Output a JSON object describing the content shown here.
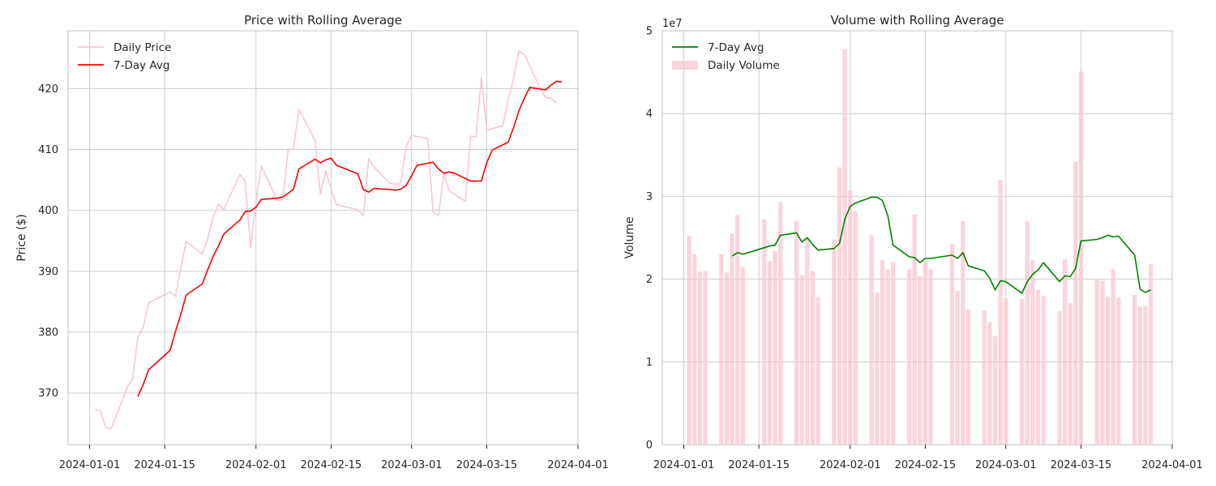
{
  "chart_data": [
    {
      "type": "line",
      "title": "Price with Rolling Average",
      "xlabel": "",
      "ylabel": "Price ($)",
      "x_tick_labels": [
        "2024-01-01",
        "2024-01-15",
        "2024-02-01",
        "2024-02-15",
        "2024-03-01",
        "2024-03-15",
        "2024-04-01"
      ],
      "y_tick_labels": [
        "370",
        "380",
        "390",
        "400",
        "410",
        "420"
      ],
      "xlim": [
        "2023-12-28",
        "2024-04-01"
      ],
      "ylim": [
        361.5,
        429.5
      ],
      "grid": true,
      "legend_position": "top-left",
      "series": [
        {
          "name": "Daily Price",
          "color": "#f9c6d0",
          "points": [
            [
              "2024-01-02",
              367.3
            ],
            [
              "2024-01-03",
              367.1
            ],
            [
              "2024-01-04",
              364.3
            ],
            [
              "2024-01-05",
              364.1
            ],
            [
              "2024-01-08",
              370.9
            ],
            [
              "2024-01-09",
              372.3
            ],
            [
              "2024-01-10",
              379.1
            ],
            [
              "2024-01-11",
              380.8
            ],
            [
              "2024-01-12",
              384.8
            ],
            [
              "2024-01-16",
              386.6
            ],
            [
              "2024-01-17",
              385.9
            ],
            [
              "2024-01-18",
              390.4
            ],
            [
              "2024-01-19",
              394.9
            ],
            [
              "2024-01-22",
              392.8
            ],
            [
              "2024-01-23",
              395.3
            ],
            [
              "2024-01-24",
              398.8
            ],
            [
              "2024-01-25",
              401.0
            ],
            [
              "2024-01-26",
              400.1
            ],
            [
              "2024-01-29",
              405.9
            ],
            [
              "2024-01-30",
              404.8
            ],
            [
              "2024-01-31",
              393.9
            ],
            [
              "2024-02-01",
              401.4
            ],
            [
              "2024-02-02",
              407.3
            ],
            [
              "2024-02-05",
              401.6
            ],
            [
              "2024-02-06",
              401.8
            ],
            [
              "2024-02-07",
              410.1
            ],
            [
              "2024-02-08",
              410.1
            ],
            [
              "2024-02-09",
              416.6
            ],
            [
              "2024-02-12",
              411.5
            ],
            [
              "2024-02-13",
              402.6
            ],
            [
              "2024-02-14",
              406.5
            ],
            [
              "2024-02-15",
              403.5
            ],
            [
              "2024-02-16",
              400.9
            ],
            [
              "2024-02-20",
              400.1
            ],
            [
              "2024-02-21",
              399.1
            ],
            [
              "2024-02-22",
              408.5
            ],
            [
              "2024-02-23",
              407.1
            ],
            [
              "2024-02-26",
              404.4
            ],
            [
              "2024-02-27",
              404.3
            ],
            [
              "2024-02-28",
              404.6
            ],
            [
              "2024-02-29",
              410.5
            ],
            [
              "2024-03-01",
              412.3
            ],
            [
              "2024-03-04",
              411.8
            ],
            [
              "2024-03-05",
              399.7
            ],
            [
              "2024-03-06",
              399.2
            ],
            [
              "2024-03-07",
              406.0
            ],
            [
              "2024-03-08",
              403.2
            ],
            [
              "2024-03-11",
              401.5
            ],
            [
              "2024-03-12",
              412.2
            ],
            [
              "2024-03-13",
              412.1
            ],
            [
              "2024-03-14",
              421.9
            ],
            [
              "2024-03-15",
              413.2
            ],
            [
              "2024-03-18",
              413.9
            ],
            [
              "2024-03-19",
              418.2
            ],
            [
              "2024-03-20",
              421.7
            ],
            [
              "2024-03-21",
              426.2
            ],
            [
              "2024-03-22",
              425.6
            ],
            [
              "2024-03-25",
              419.9
            ],
            [
              "2024-03-26",
              418.5
            ],
            [
              "2024-03-27",
              418.4
            ],
            [
              "2024-03-28",
              417.6
            ]
          ]
        },
        {
          "name": "7-Day Avg",
          "color": "#ff0000",
          "points": [
            [
              "2024-01-10",
              369.4
            ],
            [
              "2024-01-11",
              371.4
            ],
            [
              "2024-01-12",
              373.8
            ],
            [
              "2024-01-16",
              377.0
            ],
            [
              "2024-01-17",
              380.1
            ],
            [
              "2024-01-18",
              382.9
            ],
            [
              "2024-01-19",
              386.1
            ],
            [
              "2024-01-22",
              387.9
            ],
            [
              "2024-01-23",
              390.2
            ],
            [
              "2024-01-24",
              392.4
            ],
            [
              "2024-01-25",
              394.1
            ],
            [
              "2024-01-26",
              396.1
            ],
            [
              "2024-01-29",
              398.4
            ],
            [
              "2024-01-30",
              399.8
            ],
            [
              "2024-01-31",
              399.9
            ],
            [
              "2024-02-01",
              400.5
            ],
            [
              "2024-02-02",
              401.8
            ],
            [
              "2024-02-05",
              402.0
            ],
            [
              "2024-02-06",
              402.2
            ],
            [
              "2024-02-07",
              402.8
            ],
            [
              "2024-02-08",
              403.5
            ],
            [
              "2024-02-09",
              406.8
            ],
            [
              "2024-02-12",
              408.4
            ],
            [
              "2024-02-13",
              407.8
            ],
            [
              "2024-02-14",
              408.3
            ],
            [
              "2024-02-15",
              408.6
            ],
            [
              "2024-02-16",
              407.4
            ],
            [
              "2024-02-20",
              406.0
            ],
            [
              "2024-02-21",
              403.4
            ],
            [
              "2024-02-22",
              403.0
            ],
            [
              "2024-02-23",
              403.6
            ],
            [
              "2024-02-26",
              403.4
            ],
            [
              "2024-02-27",
              403.3
            ],
            [
              "2024-02-28",
              403.5
            ],
            [
              "2024-02-29",
              404.1
            ],
            [
              "2024-03-01",
              405.7
            ],
            [
              "2024-03-02",
              407.4
            ],
            [
              "2024-03-05",
              407.9
            ],
            [
              "2024-03-06",
              406.8
            ],
            [
              "2024-03-07",
              406.1
            ],
            [
              "2024-03-08",
              406.3
            ],
            [
              "2024-03-09",
              406.1
            ],
            [
              "2024-03-12",
              404.8
            ],
            [
              "2024-03-13",
              404.8
            ],
            [
              "2024-03-14",
              404.8
            ],
            [
              "2024-03-15",
              407.8
            ],
            [
              "2024-03-16",
              409.9
            ],
            [
              "2024-03-19",
              411.2
            ],
            [
              "2024-03-20",
              413.6
            ],
            [
              "2024-03-21",
              416.4
            ],
            [
              "2024-03-22",
              418.4
            ],
            [
              "2024-03-23",
              420.2
            ],
            [
              "2024-03-26",
              419.8
            ],
            [
              "2024-03-27",
              420.6
            ],
            [
              "2024-03-28",
              421.2
            ],
            [
              "2024-03-29",
              421.1
            ]
          ]
        }
      ]
    },
    {
      "type": "bar+line",
      "title": "Volume with Rolling Average",
      "xlabel": "",
      "ylabel": "Volume",
      "offset_text": "1e7",
      "x_tick_labels": [
        "2024-01-01",
        "2024-01-15",
        "2024-02-01",
        "2024-02-15",
        "2024-03-01",
        "2024-03-15",
        "2024-04-01"
      ],
      "y_tick_labels": [
        "0",
        "1",
        "2",
        "3",
        "4",
        "5"
      ],
      "xlim": [
        "2023-12-28",
        "2024-04-01"
      ],
      "ylim": [
        0,
        5.0
      ],
      "y_unit": "1e7",
      "grid": true,
      "legend_position": "top-left",
      "bars": {
        "name": "Daily Volume",
        "color": "#f9c6d0",
        "points": [
          [
            "2024-01-02",
            2.52
          ],
          [
            "2024-01-03",
            2.3
          ],
          [
            "2024-01-04",
            2.09
          ],
          [
            "2024-01-05",
            2.1
          ],
          [
            "2024-01-08",
            2.3
          ],
          [
            "2024-01-09",
            2.08
          ],
          [
            "2024-01-10",
            2.55
          ],
          [
            "2024-01-11",
            2.78
          ],
          [
            "2024-01-12",
            2.15
          ],
          [
            "2024-01-16",
            2.72
          ],
          [
            "2024-01-17",
            2.22
          ],
          [
            "2024-01-18",
            2.34
          ],
          [
            "2024-01-19",
            2.93
          ],
          [
            "2024-01-22",
            2.7
          ],
          [
            "2024-01-23",
            2.05
          ],
          [
            "2024-01-24",
            2.5
          ],
          [
            "2024-01-25",
            2.1
          ],
          [
            "2024-01-26",
            1.78
          ],
          [
            "2024-01-29",
            2.48
          ],
          [
            "2024-01-30",
            3.35
          ],
          [
            "2024-01-31",
            4.78
          ],
          [
            "2024-02-01",
            3.07
          ],
          [
            "2024-02-02",
            2.82
          ],
          [
            "2024-02-05",
            2.53
          ],
          [
            "2024-02-06",
            1.84
          ],
          [
            "2024-02-07",
            2.23
          ],
          [
            "2024-02-08",
            2.12
          ],
          [
            "2024-02-09",
            2.2
          ],
          [
            "2024-02-12",
            2.12
          ],
          [
            "2024-02-13",
            2.78
          ],
          [
            "2024-02-14",
            2.04
          ],
          [
            "2024-02-15",
            2.22
          ],
          [
            "2024-02-16",
            2.12
          ],
          [
            "2024-02-20",
            2.42
          ],
          [
            "2024-02-21",
            1.86
          ],
          [
            "2024-02-22",
            2.7
          ],
          [
            "2024-02-23",
            1.63
          ],
          [
            "2024-02-26",
            1.62
          ],
          [
            "2024-02-27",
            1.48
          ],
          [
            "2024-02-28",
            1.31
          ],
          [
            "2024-02-29",
            3.2
          ],
          [
            "2024-03-01",
            1.77
          ],
          [
            "2024-03-04",
            1.76
          ],
          [
            "2024-03-05",
            2.7
          ],
          [
            "2024-03-06",
            2.23
          ],
          [
            "2024-03-07",
            1.87
          ],
          [
            "2024-03-08",
            1.8
          ],
          [
            "2024-03-11",
            1.61
          ],
          [
            "2024-03-12",
            2.24
          ],
          [
            "2024-03-13",
            1.71
          ],
          [
            "2024-03-14",
            3.42
          ],
          [
            "2024-03-15",
            4.51
          ],
          [
            "2024-03-18",
            2.0
          ],
          [
            "2024-03-19",
            1.98
          ],
          [
            "2024-03-20",
            1.79
          ],
          [
            "2024-03-21",
            2.12
          ],
          [
            "2024-03-22",
            1.77
          ],
          [
            "2024-03-25",
            1.81
          ],
          [
            "2024-03-26",
            1.67
          ],
          [
            "2024-03-27",
            1.67
          ],
          [
            "2024-03-28",
            2.18
          ]
        ]
      },
      "series": [
        {
          "name": "7-Day Avg",
          "color": "#008000",
          "points": [
            [
              "2024-01-10",
              2.28
            ],
            [
              "2024-01-11",
              2.32
            ],
            [
              "2024-01-12",
              2.3
            ],
            [
              "2024-01-16",
              2.38
            ],
            [
              "2024-01-17",
              2.4
            ],
            [
              "2024-01-18",
              2.41
            ],
            [
              "2024-01-19",
              2.53
            ],
            [
              "2024-01-22",
              2.56
            ],
            [
              "2024-01-23",
              2.45
            ],
            [
              "2024-01-24",
              2.5
            ],
            [
              "2024-01-25",
              2.42
            ],
            [
              "2024-01-26",
              2.35
            ],
            [
              "2024-01-29",
              2.37
            ],
            [
              "2024-01-30",
              2.43
            ],
            [
              "2024-01-31",
              2.72
            ],
            [
              "2024-02-01",
              2.88
            ],
            [
              "2024-02-02",
              2.92
            ],
            [
              "2024-02-05",
              2.99
            ],
            [
              "2024-02-06",
              2.99
            ],
            [
              "2024-02-07",
              2.95
            ],
            [
              "2024-02-08",
              2.77
            ],
            [
              "2024-02-09",
              2.41
            ],
            [
              "2024-02-12",
              2.27
            ],
            [
              "2024-02-13",
              2.26
            ],
            [
              "2024-02-14",
              2.2
            ],
            [
              "2024-02-15",
              2.25
            ],
            [
              "2024-02-16",
              2.25
            ],
            [
              "2024-02-20",
              2.29
            ],
            [
              "2024-02-21",
              2.25
            ],
            [
              "2024-02-22",
              2.32
            ],
            [
              "2024-02-23",
              2.16
            ],
            [
              "2024-02-26",
              2.1
            ],
            [
              "2024-02-27",
              2.01
            ],
            [
              "2024-02-28",
              1.87
            ],
            [
              "2024-02-29",
              1.98
            ],
            [
              "2024-03-01",
              1.97
            ],
            [
              "2024-03-04",
              1.83
            ],
            [
              "2024-03-05",
              1.97
            ],
            [
              "2024-03-06",
              2.06
            ],
            [
              "2024-03-07",
              2.11
            ],
            [
              "2024-03-08",
              2.2
            ],
            [
              "2024-03-11",
              1.97
            ],
            [
              "2024-03-12",
              2.04
            ],
            [
              "2024-03-13",
              2.03
            ],
            [
              "2024-03-14",
              2.13
            ],
            [
              "2024-03-15",
              2.46
            ],
            [
              "2024-03-18",
              2.48
            ],
            [
              "2024-03-19",
              2.5
            ],
            [
              "2024-03-20",
              2.53
            ],
            [
              "2024-03-21",
              2.51
            ],
            [
              "2024-03-22",
              2.52
            ],
            [
              "2024-03-25",
              2.29
            ],
            [
              "2024-03-26",
              1.88
            ],
            [
              "2024-03-27",
              1.84
            ],
            [
              "2024-03-28",
              1.87
            ]
          ]
        }
      ]
    }
  ]
}
